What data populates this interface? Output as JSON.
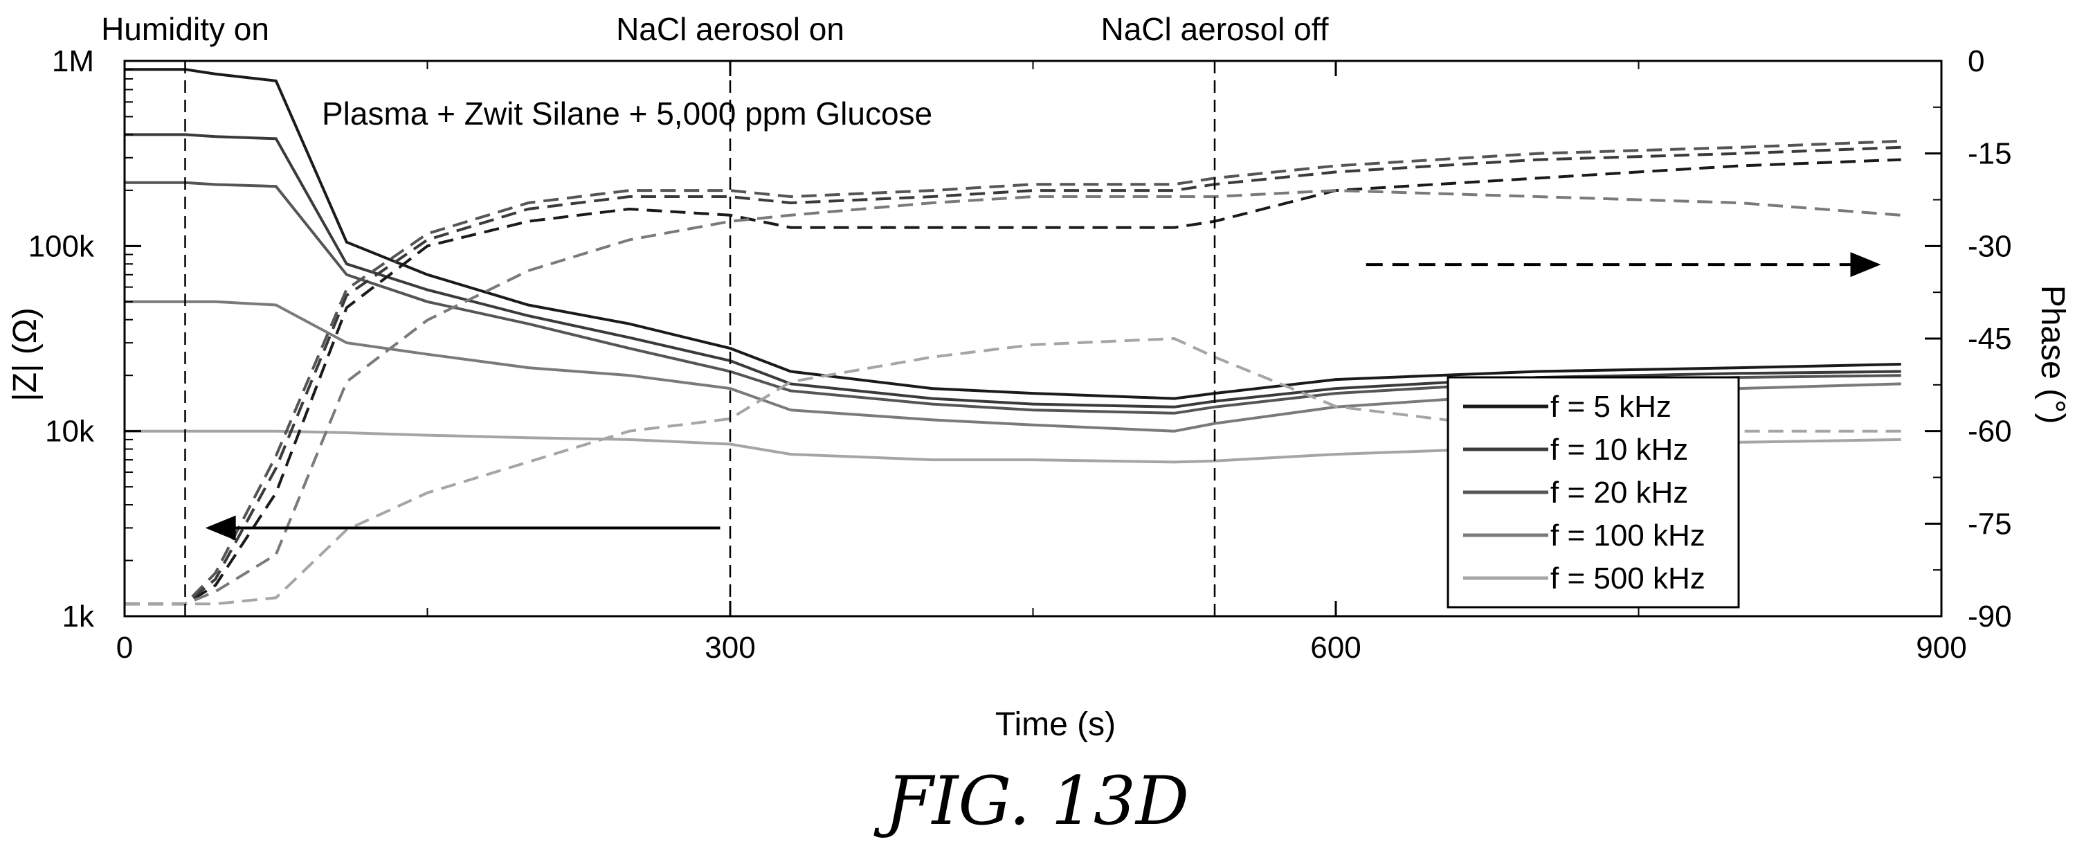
{
  "figure_caption": "ƑIG. 13D",
  "chart_data": {
    "type": "line",
    "annotation": "Plasma + Zwit Silane + 5,000 ppm Glucose",
    "xlabel": "Time (s)",
    "ylabel_left": "|Z| (Ω)",
    "ylabel_right": "Phase (°)",
    "xlim": [
      0,
      900
    ],
    "x_ticks": [
      0,
      300,
      600,
      900
    ],
    "y_left_scale": "log",
    "y_left_lim": [
      1000,
      1000000
    ],
    "y_left_ticks": [
      {
        "value": 1000,
        "label": "1k"
      },
      {
        "value": 10000,
        "label": "10k"
      },
      {
        "value": 100000,
        "label": "100k"
      },
      {
        "value": 1000000,
        "label": "1M"
      }
    ],
    "y_right_lim": [
      -90,
      0
    ],
    "y_right_ticks": [
      0,
      -15,
      -30,
      -45,
      -60,
      -75,
      -90
    ],
    "events": [
      {
        "x": 30,
        "label": "Humidity on"
      },
      {
        "x": 300,
        "label": "NaCl aerosol on"
      },
      {
        "x": 540,
        "label": "NaCl aerosol off"
      }
    ],
    "legend_position": "right",
    "grid": false,
    "arrows": [
      {
        "axis": "left",
        "direction": "left",
        "style": "solid"
      },
      {
        "axis": "right",
        "direction": "right",
        "style": "dashed"
      }
    ],
    "x": [
      0,
      30,
      45,
      75,
      110,
      150,
      200,
      250,
      300,
      330,
      400,
      450,
      520,
      540,
      600,
      700,
      800,
      880
    ],
    "impedance_series": [
      {
        "name": "f = 5 kHz",
        "color": "#1a1a1a",
        "values": [
          900000,
          900000,
          850000,
          780000,
          105000,
          70000,
          48000,
          38000,
          28000,
          21000,
          17000,
          16000,
          15000,
          16000,
          19000,
          21000,
          22000,
          23000
        ]
      },
      {
        "name": "f = 10 kHz",
        "color": "#3a3a3a",
        "values": [
          400000,
          400000,
          390000,
          380000,
          80000,
          58000,
          42000,
          32000,
          24000,
          18000,
          15000,
          14000,
          13500,
          14500,
          17000,
          19500,
          20500,
          21000
        ]
      },
      {
        "name": "f = 20 kHz",
        "color": "#555555",
        "values": [
          220000,
          220000,
          215000,
          210000,
          70000,
          50000,
          38000,
          28000,
          21000,
          16500,
          14000,
          13000,
          12500,
          13500,
          16000,
          18500,
          19500,
          20000
        ]
      },
      {
        "name": "f = 100 kHz",
        "color": "#7a7a7a",
        "values": [
          50000,
          50000,
          50000,
          48000,
          30000,
          26000,
          22000,
          20000,
          17000,
          13000,
          11500,
          10800,
          10000,
          11000,
          13500,
          16000,
          17000,
          18000
        ]
      },
      {
        "name": "f = 500 kHz",
        "color": "#a5a5a5",
        "values": [
          10000,
          10000,
          10000,
          10000,
          9800,
          9500,
          9200,
          9000,
          8500,
          7500,
          7000,
          7000,
          6800,
          6900,
          7500,
          8200,
          8700,
          9000
        ]
      }
    ],
    "phase_series": [
      {
        "name": "f = 5 kHz",
        "color": "#1a1a1a",
        "values": [
          -88,
          -88,
          -85,
          -70,
          -40,
          -30,
          -26,
          -24,
          -25,
          -27,
          -27,
          -27,
          -27,
          -26,
          -21,
          -19,
          -17,
          -16
        ]
      },
      {
        "name": "f = 10 kHz",
        "color": "#3a3a3a",
        "values": [
          -88,
          -88,
          -84,
          -66,
          -38,
          -29,
          -24,
          -22,
          -22,
          -23,
          -22,
          -21,
          -21,
          -20,
          -18,
          -16,
          -15,
          -14
        ]
      },
      {
        "name": "f = 20 kHz",
        "color": "#555555",
        "values": [
          -88,
          -88,
          -83,
          -64,
          -37,
          -28,
          -23,
          -21,
          -21,
          -22,
          -21,
          -20,
          -20,
          -19,
          -17,
          -15,
          -14,
          -13
        ]
      },
      {
        "name": "f = 100 kHz",
        "color": "#7a7a7a",
        "values": [
          -88,
          -88,
          -86,
          -80,
          -52,
          -42,
          -34,
          -29,
          -26,
          -25,
          -23,
          -22,
          -22,
          -22,
          -21,
          -22,
          -23,
          -25
        ]
      },
      {
        "name": "f = 500 kHz",
        "color": "#a5a5a5",
        "values": [
          -88,
          -88,
          -88,
          -87,
          -76,
          -70,
          -65,
          -60,
          -58,
          -52,
          -48,
          -46,
          -45,
          -48,
          -56,
          -60,
          -60,
          -60
        ]
      }
    ]
  }
}
